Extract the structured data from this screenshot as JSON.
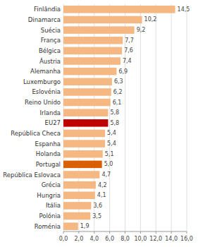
{
  "chart_data": {
    "type": "bar",
    "orientation": "horizontal",
    "categories": [
      "Roménia",
      "Polónia",
      "Itália",
      "Hungria",
      "Grécia",
      "República Eslovaca",
      "Portugal",
      "Holanda",
      "Espanha",
      "República Checa",
      "EU27",
      "Irlanda",
      "Reino Unido",
      "Eslovénia",
      "Luxemburgo",
      "Alemanha",
      "Áustria",
      "Bélgica",
      "França",
      "Suécia",
      "Dinamarca",
      "Finlândia"
    ],
    "values": [
      1.9,
      3.5,
      3.6,
      4.1,
      4.2,
      4.7,
      5.0,
      5.1,
      5.4,
      5.4,
      5.8,
      5.8,
      6.1,
      6.2,
      6.3,
      6.9,
      7.4,
      7.6,
      7.7,
      9.2,
      10.2,
      14.5
    ],
    "value_labels": [
      "1,9",
      "3,5",
      "3,6",
      "4,1",
      "4,2",
      "4,7",
      "5,0",
      "5,1",
      "5,4",
      "5,4",
      "5,8",
      "5,8",
      "6,1",
      "6,2",
      "6,3",
      "6,9",
      "7,4",
      "7,6",
      "7,7",
      "9,2",
      "10,2",
      "14,5"
    ],
    "colors": [
      "#f5b882",
      "#f5b882",
      "#f5b882",
      "#f5b882",
      "#f5b882",
      "#f5b882",
      "#d96000",
      "#f5b882",
      "#f5b882",
      "#f5b882",
      "#c00000",
      "#f5b882",
      "#f5b882",
      "#f5b882",
      "#f5b882",
      "#f5b882",
      "#f5b882",
      "#f5b882",
      "#f5b882",
      "#f5b882",
      "#f5b882",
      "#f5b882"
    ],
    "xlim": [
      0,
      16.0
    ],
    "xticks": [
      {
        "value": 0.0,
        "label": "0,0"
      },
      {
        "value": 2.0,
        "label": "2,0"
      },
      {
        "value": 4.0,
        "label": "4,0"
      },
      {
        "value": 6.0,
        "label": "6,0"
      },
      {
        "value": 8.0,
        "label": "8,0"
      },
      {
        "value": 10.0,
        "label": "10,0"
      },
      {
        "value": 12.0,
        "label": "12,0"
      },
      {
        "value": 14.0,
        "label": "14,0"
      },
      {
        "value": 16.0,
        "label": "16,0"
      }
    ],
    "grid": true,
    "data_labels": true
  }
}
